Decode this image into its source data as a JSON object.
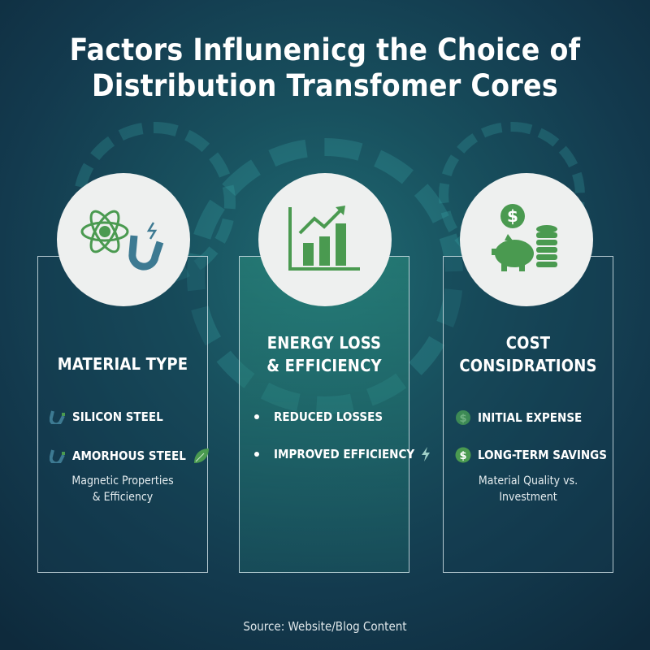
{
  "title_line1": "Factors Influnenicg the Choice of",
  "title_line2": "Distribution Transfomer Cores",
  "cards": [
    {
      "heading": "MATERIAL TYPE",
      "items": [
        {
          "label": "SILICON STEEL",
          "icon": "magnet-icon"
        },
        {
          "label": "AMORHOUS STEEL",
          "icon": "magnet-icon",
          "trailing_icon": "leaf-icon"
        }
      ],
      "note_line1": "Magnetic Properties",
      "note_line2": "& Efficiency",
      "circle_icons": [
        "atom-icon",
        "magnet-icon"
      ]
    },
    {
      "heading_line1": "ENERGY LOSS",
      "heading_line2": "& EFFICIENCY",
      "items": [
        {
          "label": "REDUCED LOSSES",
          "icon": "bullet"
        },
        {
          "label": "IMPROVED EFFICIENCY",
          "icon": "bullet",
          "trailing_icon": "lightning-icon"
        }
      ],
      "circle_icons": [
        "bar-chart-growth-icon"
      ]
    },
    {
      "heading_line1": "COST",
      "heading_line2": "CONSIDRATIONS",
      "items": [
        {
          "label": "INITIAL EXPENSE",
          "icon": "dollar-coin-icon"
        },
        {
          "label": "LONG-TERM SAVINGS",
          "icon": "dollar-coin-icon"
        }
      ],
      "note_line1": "Material Quality vs.",
      "note_line2": "Investment",
      "circle_icons": [
        "dollar-coin-icon",
        "piggy-bank-icon",
        "coin-stack-icon"
      ]
    }
  ],
  "source": "Source: Website/Blog Content",
  "colors": {
    "accent_green": "#4a9a50",
    "icon_blue": "#3d7a92",
    "circle_bg": "#eef0ef"
  }
}
